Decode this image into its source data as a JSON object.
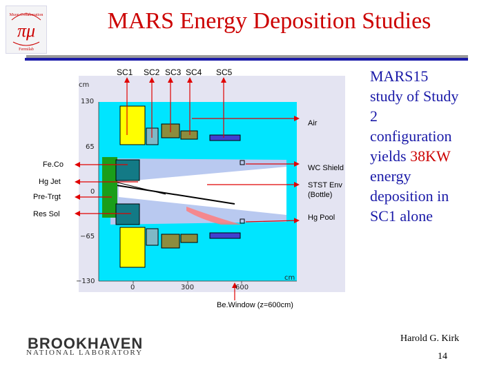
{
  "title": "MARS Energy Deposition Studies",
  "logo": {
    "top_text": "Muon Collaboration",
    "symbol": "πμ",
    "bottom_text": "Fermilab"
  },
  "coil_labels": {
    "sc1": "SC1",
    "sc2": "SC2",
    "sc3": "SC3",
    "sc4": "SC4",
    "sc5": "SC5"
  },
  "left_labels": {
    "feco": "Fe.Co",
    "hgjet": "Hg Jet",
    "pretrgt": "Pre-Trgt",
    "ressol": "Res Sol"
  },
  "right_labels": {
    "air": "Air",
    "wcshield": "WC Shield",
    "stst1": "STST Env",
    "stst2": "(Bottle)",
    "hgpool": "Hg Pool"
  },
  "axis": {
    "unit_top": "cm",
    "unit_bottom": "cm",
    "y_ticks": [
      "130",
      "65",
      "0",
      "−65",
      "−130"
    ],
    "x_ticks": [
      "0",
      "300",
      "600"
    ]
  },
  "bottom_label": "Be.Window (z=600cm)",
  "side_text": {
    "l1": "MARS15",
    "l2": "study of Study",
    "l3": "2",
    "l4": "configuration",
    "l5a": "yields ",
    "l5b": "38KW",
    "l6": "energy",
    "l7": "deposition in",
    "l8": "SC1 alone"
  },
  "colors": {
    "title": "#cc0000",
    "side_text": "#1a1aa8",
    "highlight": "#cc0000",
    "cyan": "#00e5ff",
    "arrow": "#e00000"
  },
  "footer": {
    "author": "Harold G. Kirk",
    "page_number": "14",
    "lab_name": "BROOKHAVEN",
    "lab_sub": "NATIONAL LABORATORY"
  }
}
